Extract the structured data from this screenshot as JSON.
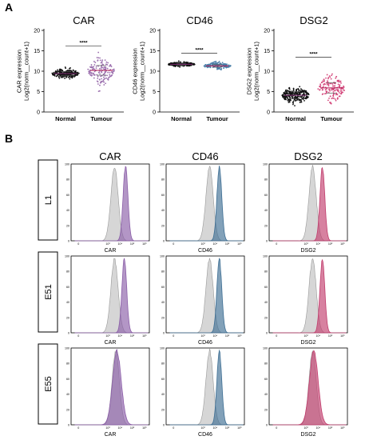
{
  "panels": {
    "a": "A",
    "b": "B"
  },
  "dot_plot_axis": {
    "ylabel_line1": "expression",
    "ylabel_line2": "Log2(norm__count+1)",
    "yticks": [
      "0",
      "5",
      "10",
      "15",
      "20"
    ],
    "groups": [
      "Normal",
      "Tumour"
    ],
    "significance": "****"
  },
  "dot_plots": [
    {
      "title": "CAR",
      "ylabel_prefix": "CAR",
      "normal": {
        "median": 9.4,
        "min": 7.0,
        "max": 11.8,
        "color": "#111111"
      },
      "tumour": {
        "median": 10.2,
        "min": 3.8,
        "max": 14.6,
        "color": "#9b6fae"
      }
    },
    {
      "title": "CD46",
      "ylabel_prefix": "CD46",
      "normal": {
        "median": 11.7,
        "min": 10.6,
        "max": 12.8,
        "color": "#111111"
      },
      "tumour": {
        "median": 11.3,
        "min": 9.7,
        "max": 12.6,
        "color": "#4a7ea8"
      }
    },
    {
      "title": "DSG2",
      "ylabel_prefix": "DSG2",
      "normal": {
        "median": 4.1,
        "min": 0.8,
        "max": 9.0,
        "color": "#111111"
      },
      "tumour": {
        "median": 5.9,
        "min": 0.4,
        "max": 11.8,
        "color": "#d4487c"
      }
    }
  ],
  "flow": {
    "columns": [
      "CAR",
      "CD46",
      "DSG2"
    ],
    "rows": [
      "L1",
      "E51",
      "E55"
    ],
    "yticks": [
      "0",
      "20",
      "40",
      "60",
      "80",
      "100"
    ],
    "xticks": [
      "0",
      "10³",
      "10⁴",
      "10⁵",
      "10⁶"
    ],
    "control_color": "#c8c8c8",
    "colors": [
      "#8b5ea8",
      "#3f6f94",
      "#c13d6d"
    ],
    "peaks": [
      [
        {
          "control": 3.55,
          "stain": 4.45
        },
        {
          "control": 3.55,
          "stain": 4.35
        },
        {
          "control": 3.55,
          "stain": 4.35
        }
      ],
      [
        {
          "control": 3.55,
          "stain": 4.35
        },
        {
          "control": 3.55,
          "stain": 4.35
        },
        {
          "control": 3.55,
          "stain": 4.35
        }
      ],
      [
        {
          "control": 3.65,
          "stain": 3.75
        },
        {
          "control": 3.55,
          "stain": 4.35
        },
        {
          "control": 3.55,
          "stain": 3.65
        }
      ]
    ]
  }
}
